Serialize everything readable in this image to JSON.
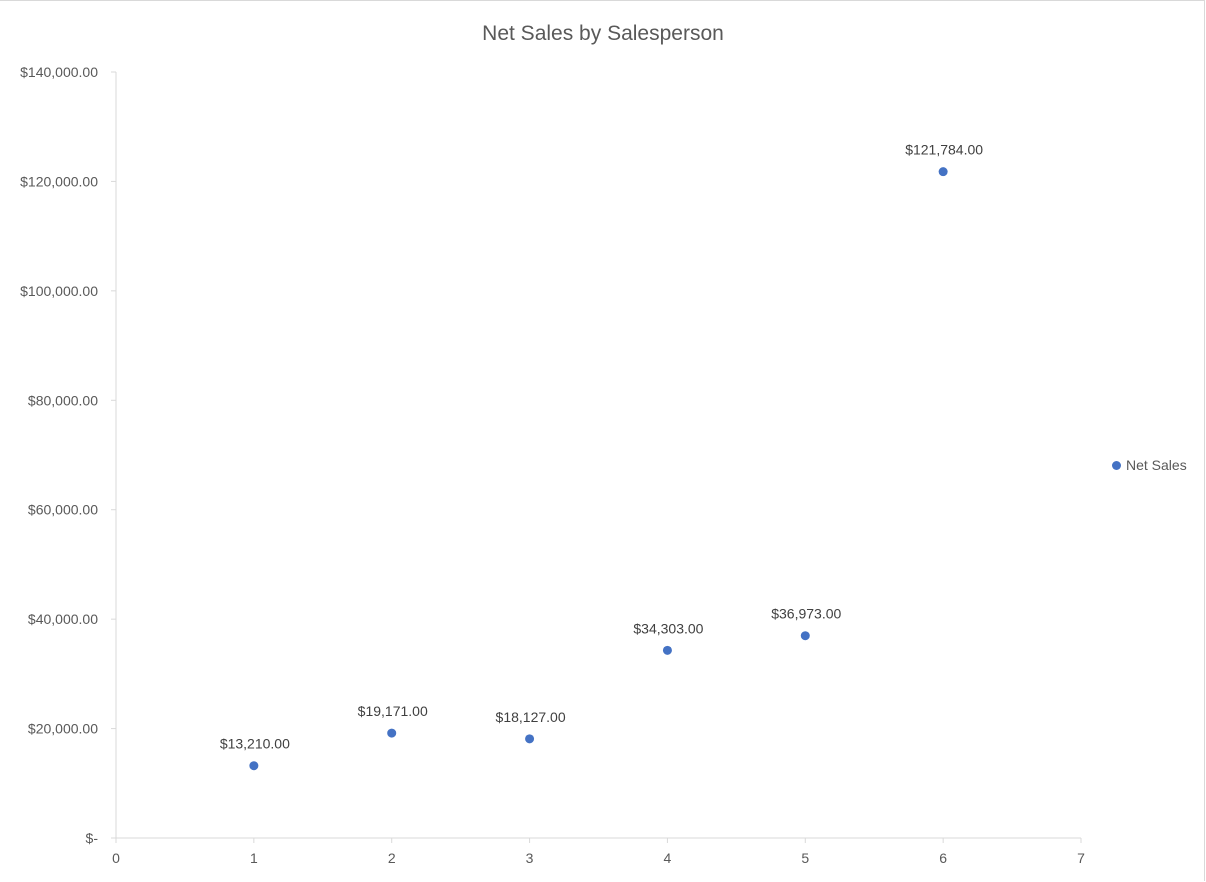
{
  "chart_data": {
    "type": "scatter",
    "title": "Net Sales by Salesperson",
    "xlabel": "",
    "ylabel": "",
    "xlim": [
      0,
      7
    ],
    "ylim": [
      0,
      140000
    ],
    "x_ticks": [
      "0",
      "1",
      "2",
      "3",
      "4",
      "5",
      "6",
      "7"
    ],
    "y_ticks": [
      "$-",
      "$20,000.00",
      "$40,000.00",
      "$60,000.00",
      "$80,000.00",
      "$100,000.00",
      "$120,000.00",
      "$140,000.00"
    ],
    "grid": false,
    "legend_position": "right",
    "series": [
      {
        "name": "Net Sales",
        "color": "#4472c4",
        "x": [
          1,
          2,
          3,
          4,
          5,
          6
        ],
        "y": [
          13210,
          19171,
          18127,
          34303,
          36973,
          121784
        ],
        "labels": [
          "$13,210.00",
          "$19,171.00",
          "$18,127.00",
          "$34,303.00",
          "$36,973.00",
          "$121,784.00"
        ]
      }
    ]
  }
}
